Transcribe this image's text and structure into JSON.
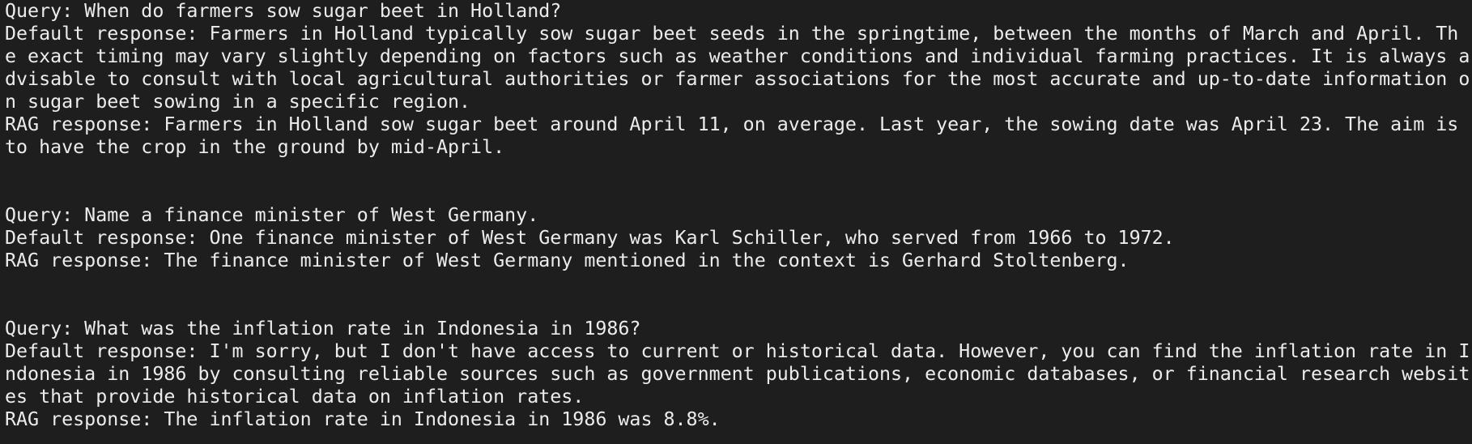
{
  "entries": [
    {
      "query": "Query: When do farmers sow sugar beet in Holland?",
      "default": "Default response: Farmers in Holland typically sow sugar beet seeds in the springtime, between the months of March and April. The exact timing may vary slightly depending on factors such as weather conditions and individual farming practices. It is always advisable to consult with local agricultural authorities or farmer associations for the most accurate and up-to-date information on sugar beet sowing in a specific region.",
      "rag": "RAG response: Farmers in Holland sow sugar beet around April 11, on average. Last year, the sowing date was April 23. The aim is to have the crop in the ground by mid-April."
    },
    {
      "query": "Query: Name a finance minister of West Germany.",
      "default": "Default response: One finance minister of West Germany was Karl Schiller, who served from 1966 to 1972.",
      "rag": "RAG response: The finance minister of West Germany mentioned in the context is Gerhard Stoltenberg."
    },
    {
      "query": "Query: What was the inflation rate in Indonesia in 1986?",
      "default": "Default response: I'm sorry, but I don't have access to current or historical data. However, you can find the inflation rate in Indonesia in 1986 by consulting reliable sources such as government publications, economic databases, or financial research websites that provide historical data on inflation rates.",
      "rag": "RAG response: The inflation rate in Indonesia in 1986 was 8.8%."
    }
  ]
}
